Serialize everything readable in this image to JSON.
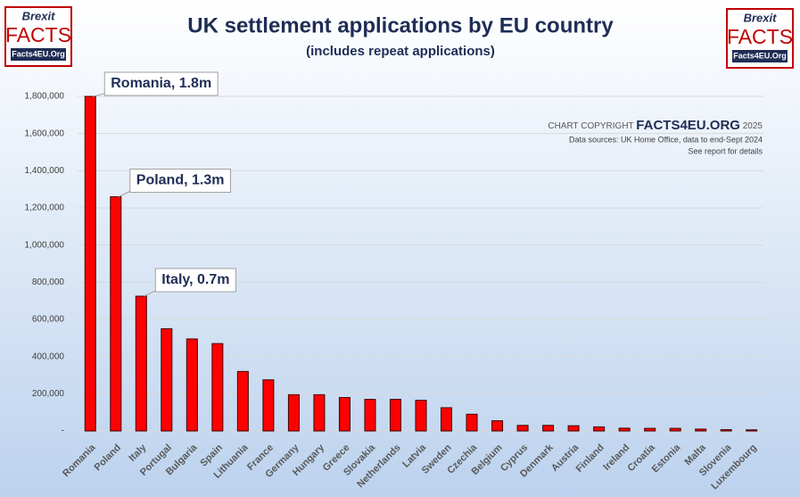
{
  "chart_data": {
    "type": "bar",
    "title": "UK settlement applications by EU country",
    "subtitle": "(includes repeat applications)",
    "categories": [
      "Romania",
      "Poland",
      "Italy",
      "Portugal",
      "Bulgaria",
      "Spain",
      "Lithuania",
      "France",
      "Germany",
      "Hungary",
      "Greece",
      "Slovakia",
      "Netherlands",
      "Latvia",
      "Sweden",
      "Czechia",
      "Belgium",
      "Cyprus",
      "Denmark",
      "Austria",
      "Finland",
      "Ireland",
      "Croatia",
      "Estonia",
      "Malta",
      "Slovenia",
      "Luxembourg"
    ],
    "values": [
      1800000,
      1260000,
      725000,
      550000,
      495000,
      470000,
      320000,
      275000,
      195000,
      195000,
      180000,
      170000,
      170000,
      165000,
      125000,
      90000,
      55000,
      30000,
      30000,
      28000,
      22000,
      15000,
      14000,
      14000,
      10000,
      7000,
      6000
    ],
    "color": "#ff0000",
    "ylim": [
      0,
      1800000
    ],
    "yticks": [
      {
        "value": 0,
        "label": "-"
      },
      {
        "value": 200000,
        "label": "200,000"
      },
      {
        "value": 400000,
        "label": "400,000"
      },
      {
        "value": 600000,
        "label": "600,000"
      },
      {
        "value": 800000,
        "label": "800,000"
      },
      {
        "value": 1000000,
        "label": "1,000,000"
      },
      {
        "value": 1200000,
        "label": "1,200,000"
      },
      {
        "value": 1400000,
        "label": "1,400,000"
      },
      {
        "value": 1600000,
        "label": "1,600,000"
      },
      {
        "value": 1800000,
        "label": "1,800,000"
      }
    ],
    "grid": true,
    "annotations": [
      "Romania, 1.8m",
      "Poland, 1.3m",
      "Italy, 0.7m"
    ],
    "copyright": {
      "prefix": "CHART COPYRIGHT",
      "brand": "FACTS4EU.ORG",
      "year": "2025"
    },
    "source": "Data sources: UK Home Office, data to end-Sept 2024",
    "note": "See report for details",
    "logo": {
      "top": "Brexit",
      "main": "FACTS",
      "url": "Facts4EU.Org"
    }
  }
}
